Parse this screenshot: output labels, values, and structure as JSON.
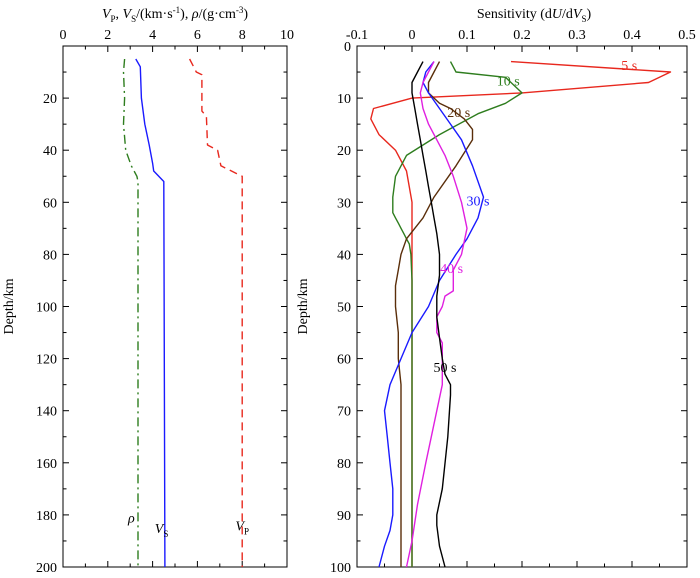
{
  "chart_data": [
    {
      "type": "line",
      "title": "V_P, V_S/(km·s⁻¹), ρ/(g·cm⁻³)",
      "title_parts": {
        "vp": "V",
        "vp_sub": "P",
        "sep1": ", ",
        "vs": "V",
        "vs_sub": "S",
        "unit1": "/(km·s",
        "unit1_sup": "-1",
        "sep2": "), ",
        "rho": "ρ",
        "unit2": "/(g·cm",
        "unit2_sup": "-3",
        "close": ")"
      },
      "ylabel": "Depth/km",
      "xlim": [
        0,
        10
      ],
      "ylim": [
        0,
        200
      ],
      "x_ticks": [
        0,
        2,
        4,
        6,
        8,
        10
      ],
      "x_tick_labels": [
        "0",
        "2",
        "4",
        "6",
        "8",
        "10"
      ],
      "y_ticks": [
        20,
        40,
        60,
        80,
        100,
        120,
        140,
        160,
        180,
        200
      ],
      "y_tick_labels": [
        "20",
        "40",
        "60",
        "80",
        "100",
        "120",
        "140",
        "160",
        "180",
        "200"
      ],
      "series": [
        {
          "name": "ρ",
          "label": "ρ",
          "color": "#2e7d1e",
          "dash": "dashdot",
          "x": [
            2.75,
            2.7,
            2.75,
            2.7,
            2.8,
            3.05,
            3.3,
            3.35,
            3.35
          ],
          "y": [
            5,
            10,
            20,
            30,
            40,
            46,
            50,
            52,
            200
          ]
        },
        {
          "name": "V_S",
          "label": "V",
          "label_sub": "S",
          "color": "#1a1aff",
          "dash": "solid",
          "x": [
            3.25,
            3.45,
            3.5,
            3.65,
            3.85,
            4.0,
            4.05,
            4.5,
            4.55
          ],
          "y": [
            5,
            8,
            20,
            30,
            38,
            45,
            48,
            52,
            200
          ]
        },
        {
          "name": "V_P",
          "label": "V",
          "label_sub": "P",
          "color": "#e8281e",
          "dash": "dashed",
          "x": [
            5.65,
            5.95,
            6.2,
            6.2,
            6.4,
            6.45,
            6.9,
            7.05,
            8.0,
            8.0
          ],
          "y": [
            5,
            10,
            11,
            25,
            27,
            38,
            40,
            46,
            50,
            200
          ]
        }
      ]
    },
    {
      "type": "line",
      "title": "Sensitivity (dU/dV_S)",
      "title_parts": {
        "a": "Sensitivity (d",
        "b": "U",
        "c": "/d",
        "d": "V",
        "d_sub": "S",
        "e": ")"
      },
      "ylabel": "Depth/km",
      "xlim": [
        -0.1,
        0.5
      ],
      "ylim": [
        0,
        100
      ],
      "x_ticks": [
        -0.1,
        0,
        0.1,
        0.2,
        0.3,
        0.4,
        0.5
      ],
      "x_tick_labels": [
        "-0.1",
        "0",
        "0.1",
        "0.2",
        "0.3",
        "0.4",
        "0.5"
      ],
      "y_ticks": [
        0,
        10,
        20,
        30,
        40,
        50,
        60,
        70,
        80,
        90,
        100
      ],
      "y_tick_labels": [
        "0",
        "10",
        "20",
        "30",
        "40",
        "50",
        "60",
        "70",
        "80",
        "90",
        "100"
      ],
      "series": [
        {
          "name": "5 s",
          "label": "5 s",
          "color": "#e8281e",
          "x": [
            0.18,
            0.47,
            0.43,
            0.2,
            0.0,
            -0.07,
            -0.075,
            -0.06,
            -0.03,
            -0.01,
            0.0,
            0.0,
            0.0
          ],
          "y": [
            3,
            5,
            7,
            9,
            10,
            12,
            14,
            17,
            20,
            24,
            30,
            40,
            100
          ]
        },
        {
          "name": "10 s",
          "label": "10 s",
          "color": "#2e7d1e",
          "x": [
            0.07,
            0.08,
            0.17,
            0.2,
            0.17,
            0.12,
            0.05,
            -0.01,
            -0.03,
            -0.035,
            -0.035,
            -0.03,
            -0.025,
            -0.02,
            -0.015,
            -0.01,
            -0.005,
            -0.002,
            0.0,
            0.0
          ],
          "y": [
            3,
            5,
            6,
            9,
            11,
            13,
            17,
            21,
            25,
            29,
            32,
            33,
            34,
            35,
            36,
            37,
            38,
            40,
            45,
            100
          ]
        },
        {
          "name": "20 s",
          "label": "20 s",
          "color": "#5a2e0a",
          "x": [
            0.05,
            0.04,
            0.03,
            0.03,
            0.05,
            0.07,
            0.095,
            0.11,
            0.11,
            0.08,
            0.04,
            0.02,
            -0.01,
            -0.02,
            -0.025,
            -0.03,
            -0.03,
            -0.025,
            -0.025,
            -0.02,
            -0.02,
            -0.02,
            -0.02,
            -0.02
          ],
          "y": [
            3,
            5,
            7,
            9,
            11,
            12,
            14,
            16,
            18,
            23,
            29,
            33,
            37,
            40,
            43,
            46,
            50,
            55,
            60,
            65,
            70,
            80,
            90,
            100
          ]
        },
        {
          "name": "30 s",
          "label": "30 s",
          "color": "#1a1aff",
          "x": [
            0.04,
            0.025,
            0.02,
            0.03,
            0.05,
            0.07,
            0.09,
            0.11,
            0.13,
            0.12,
            0.1,
            0.08,
            0.05,
            0.03,
            0.0,
            -0.02,
            -0.04,
            -0.05,
            -0.045,
            -0.04,
            -0.035,
            -0.035,
            -0.04,
            -0.05,
            -0.06
          ],
          "y": [
            3,
            5,
            7,
            9,
            12,
            15,
            18,
            23,
            29,
            33,
            37,
            40,
            45,
            50,
            55,
            60,
            65,
            70,
            75,
            80,
            85,
            90,
            93,
            96,
            100
          ]
        },
        {
          "name": "40 s",
          "label": "40 s",
          "color": "#e020e0",
          "x": [
            0.04,
            0.03,
            0.02,
            0.015,
            0.02,
            0.03,
            0.045,
            0.06,
            0.075,
            0.09,
            0.1,
            0.09,
            0.075,
            0.075,
            0.06,
            0.055,
            0.045,
            0.045,
            0.055,
            0.055,
            0.055,
            0.045,
            0.035,
            0.025,
            0.01,
            0.0,
            -0.01
          ],
          "y": [
            3,
            5,
            7,
            9,
            12,
            15,
            18,
            21,
            25,
            30,
            35,
            40,
            43,
            47,
            48,
            50,
            52,
            55,
            57,
            60,
            65,
            70,
            75,
            80,
            88,
            95,
            100
          ]
        },
        {
          "name": "50 s",
          "label": "50 s",
          "color": "#000000",
          "x": [
            0.02,
            0.01,
            0.0,
            0.0,
            0.005,
            0.01,
            0.015,
            0.02,
            0.025,
            0.03,
            0.035,
            0.04,
            0.045,
            0.05,
            0.05,
            0.045,
            0.045,
            0.05,
            0.055,
            0.06,
            0.07,
            0.07,
            0.065,
            0.055,
            0.045,
            0.045,
            0.05,
            0.06
          ],
          "y": [
            3,
            5,
            7,
            9,
            12,
            15,
            18,
            21,
            24,
            27,
            30,
            33,
            36,
            40,
            44,
            48,
            52,
            56,
            60,
            63,
            65,
            67,
            75,
            85,
            90,
            92,
            96,
            100
          ]
        }
      ]
    }
  ]
}
